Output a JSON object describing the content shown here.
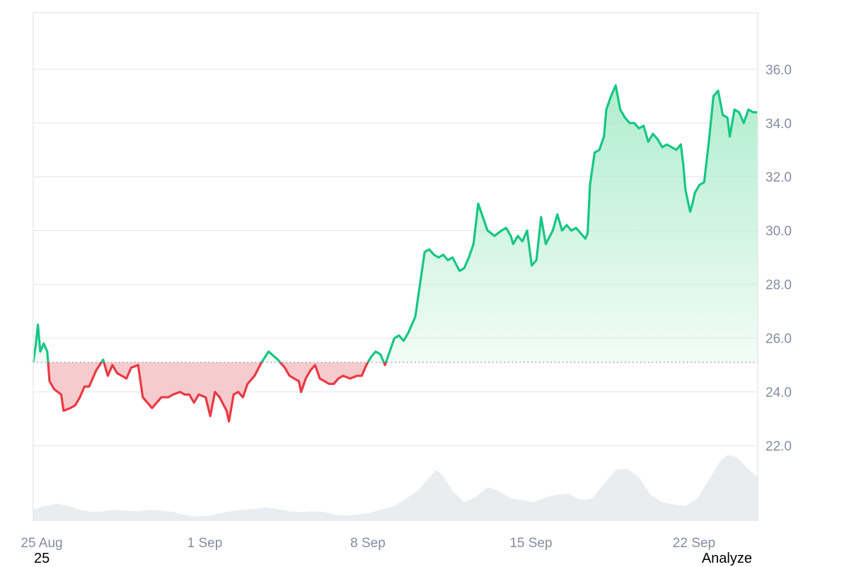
{
  "colors": {
    "up": "#16c784",
    "down": "#ea3943",
    "up_fill_top": "#a8ebc9",
    "down_fill": "#f5c2c5",
    "grid": "#e6e8ec",
    "axis_text": "#858ca2",
    "volume": "#eaedf0"
  },
  "chart_data": {
    "type": "area",
    "baseline": 25.1,
    "ylim": [
      19.2,
      38.1
    ],
    "y_ticks": [
      "36.0",
      "34.0",
      "32.0",
      "30.0",
      "28.0",
      "26.0",
      "24.0",
      "22.0"
    ],
    "x_ticks": [
      {
        "label": "25 Aug",
        "day": 0
      },
      {
        "label": "1 Sep",
        "day": 7
      },
      {
        "label": "8 Sep",
        "day": 14
      },
      {
        "label": "15 Sep",
        "day": 21
      },
      {
        "label": "22 Sep",
        "day": 28
      }
    ],
    "x_range_days": [
      0,
      31.1
    ],
    "series": [
      {
        "points": [
          [
            0.0,
            25.1
          ],
          [
            0.1,
            25.7
          ],
          [
            0.2,
            26.5
          ],
          [
            0.3,
            25.5
          ],
          [
            0.45,
            25.8
          ],
          [
            0.6,
            25.5
          ],
          [
            0.7,
            24.4
          ],
          [
            0.9,
            24.1
          ],
          [
            1.2,
            23.9
          ],
          [
            1.3,
            23.3
          ],
          [
            1.6,
            23.4
          ],
          [
            1.8,
            23.5
          ],
          [
            2.0,
            23.8
          ],
          [
            2.2,
            24.2
          ],
          [
            2.4,
            24.2
          ],
          [
            2.7,
            24.8
          ],
          [
            3.0,
            25.2
          ],
          [
            3.2,
            24.6
          ],
          [
            3.4,
            25.0
          ],
          [
            3.6,
            24.7
          ],
          [
            3.8,
            24.6
          ],
          [
            4.0,
            24.5
          ],
          [
            4.2,
            24.9
          ],
          [
            4.5,
            25.0
          ],
          [
            4.7,
            23.8
          ],
          [
            4.9,
            23.6
          ],
          [
            5.1,
            23.4
          ],
          [
            5.3,
            23.6
          ],
          [
            5.5,
            23.8
          ],
          [
            5.8,
            23.8
          ],
          [
            6.0,
            23.9
          ],
          [
            6.3,
            24.0
          ],
          [
            6.5,
            23.9
          ],
          [
            6.7,
            23.9
          ],
          [
            6.9,
            23.6
          ],
          [
            7.1,
            23.9
          ],
          [
            7.4,
            23.8
          ],
          [
            7.6,
            23.1
          ],
          [
            7.8,
            24.0
          ],
          [
            8.0,
            23.8
          ],
          [
            8.3,
            23.3
          ],
          [
            8.4,
            22.9
          ],
          [
            8.6,
            23.9
          ],
          [
            8.8,
            24.0
          ],
          [
            9.0,
            23.8
          ],
          [
            9.2,
            24.3
          ],
          [
            9.5,
            24.6
          ],
          [
            9.8,
            25.1
          ],
          [
            10.1,
            25.5
          ],
          [
            10.5,
            25.2
          ],
          [
            10.8,
            24.9
          ],
          [
            11.0,
            24.6
          ],
          [
            11.2,
            24.5
          ],
          [
            11.4,
            24.4
          ],
          [
            11.5,
            24.0
          ],
          [
            11.7,
            24.5
          ],
          [
            11.9,
            24.8
          ],
          [
            12.1,
            25.0
          ],
          [
            12.3,
            24.5
          ],
          [
            12.5,
            24.4
          ],
          [
            12.7,
            24.3
          ],
          [
            12.9,
            24.3
          ],
          [
            13.1,
            24.5
          ],
          [
            13.3,
            24.6
          ],
          [
            13.6,
            24.5
          ],
          [
            13.9,
            24.6
          ],
          [
            14.1,
            24.6
          ],
          [
            14.3,
            25.0
          ],
          [
            14.5,
            25.3
          ],
          [
            14.7,
            25.5
          ],
          [
            14.9,
            25.4
          ],
          [
            15.1,
            25.0
          ],
          [
            15.3,
            25.5
          ],
          [
            15.5,
            26.0
          ],
          [
            15.7,
            26.1
          ],
          [
            15.9,
            25.9
          ],
          [
            16.1,
            26.2
          ],
          [
            16.4,
            26.8
          ],
          [
            16.6,
            28.0
          ],
          [
            16.8,
            29.2
          ],
          [
            17.0,
            29.3
          ],
          [
            17.2,
            29.1
          ],
          [
            17.4,
            29.0
          ],
          [
            17.6,
            29.1
          ],
          [
            17.8,
            28.9
          ],
          [
            18.0,
            29.0
          ],
          [
            18.3,
            28.5
          ],
          [
            18.5,
            28.6
          ],
          [
            18.7,
            29.0
          ],
          [
            18.9,
            29.5
          ],
          [
            19.1,
            31.0
          ],
          [
            19.3,
            30.5
          ],
          [
            19.5,
            30.0
          ],
          [
            19.8,
            29.8
          ],
          [
            20.1,
            30.0
          ],
          [
            20.3,
            30.1
          ],
          [
            20.5,
            29.8
          ],
          [
            20.6,
            29.5
          ],
          [
            20.8,
            29.8
          ],
          [
            21.0,
            29.6
          ],
          [
            21.2,
            30.0
          ],
          [
            21.4,
            28.7
          ],
          [
            21.6,
            28.9
          ],
          [
            21.8,
            30.5
          ],
          [
            22.0,
            29.5
          ],
          [
            22.3,
            30.0
          ],
          [
            22.5,
            30.6
          ],
          [
            22.7,
            30.0
          ],
          [
            22.9,
            30.2
          ],
          [
            23.1,
            30.0
          ],
          [
            23.3,
            30.1
          ],
          [
            23.5,
            29.9
          ],
          [
            23.7,
            29.7
          ],
          [
            23.8,
            29.9
          ],
          [
            23.9,
            31.7
          ],
          [
            24.1,
            32.9
          ],
          [
            24.3,
            33.0
          ],
          [
            24.5,
            33.5
          ],
          [
            24.6,
            34.5
          ],
          [
            24.8,
            35.0
          ],
          [
            25.0,
            35.4
          ],
          [
            25.2,
            34.5
          ],
          [
            25.4,
            34.2
          ],
          [
            25.6,
            34.0
          ],
          [
            25.8,
            34.0
          ],
          [
            26.0,
            33.8
          ],
          [
            26.2,
            33.9
          ],
          [
            26.4,
            33.3
          ],
          [
            26.6,
            33.6
          ],
          [
            26.8,
            33.4
          ],
          [
            27.0,
            33.1
          ],
          [
            27.2,
            33.2
          ],
          [
            27.4,
            33.1
          ],
          [
            27.6,
            33.0
          ],
          [
            27.8,
            33.2
          ],
          [
            27.9,
            32.5
          ],
          [
            28.0,
            31.5
          ],
          [
            28.2,
            30.7
          ],
          [
            28.3,
            31.0
          ],
          [
            28.4,
            31.4
          ],
          [
            28.6,
            31.7
          ],
          [
            28.8,
            31.8
          ],
          [
            29.0,
            33.3
          ],
          [
            29.2,
            35.0
          ],
          [
            29.4,
            35.2
          ],
          [
            29.6,
            34.3
          ],
          [
            29.8,
            34.2
          ],
          [
            29.9,
            33.5
          ],
          [
            30.1,
            34.5
          ],
          [
            30.3,
            34.4
          ],
          [
            30.5,
            34.0
          ],
          [
            30.7,
            34.5
          ],
          [
            30.9,
            34.4
          ],
          [
            31.1,
            34.4
          ]
        ]
      }
    ],
    "volume": {
      "max": 1.0,
      "points": [
        [
          0.0,
          0.15
        ],
        [
          0.5,
          0.2
        ],
        [
          1.0,
          0.23
        ],
        [
          1.5,
          0.2
        ],
        [
          2.0,
          0.15
        ],
        [
          2.5,
          0.12
        ],
        [
          3.0,
          0.13
        ],
        [
          3.5,
          0.15
        ],
        [
          4.0,
          0.14
        ],
        [
          4.5,
          0.13
        ],
        [
          5.0,
          0.15
        ],
        [
          5.5,
          0.14
        ],
        [
          6.0,
          0.12
        ],
        [
          6.5,
          0.08
        ],
        [
          7.0,
          0.06
        ],
        [
          7.5,
          0.07
        ],
        [
          8.0,
          0.1
        ],
        [
          8.5,
          0.13
        ],
        [
          9.0,
          0.15
        ],
        [
          9.5,
          0.16
        ],
        [
          10.0,
          0.18
        ],
        [
          10.5,
          0.16
        ],
        [
          11.0,
          0.13
        ],
        [
          11.5,
          0.12
        ],
        [
          12.0,
          0.13
        ],
        [
          12.5,
          0.12
        ],
        [
          13.0,
          0.08
        ],
        [
          13.5,
          0.07
        ],
        [
          14.0,
          0.09
        ],
        [
          14.5,
          0.11
        ],
        [
          15.0,
          0.16
        ],
        [
          15.5,
          0.2
        ],
        [
          16.0,
          0.3
        ],
        [
          16.5,
          0.4
        ],
        [
          17.0,
          0.58
        ],
        [
          17.3,
          0.68
        ],
        [
          17.6,
          0.6
        ],
        [
          18.0,
          0.4
        ],
        [
          18.5,
          0.25
        ],
        [
          19.0,
          0.32
        ],
        [
          19.5,
          0.45
        ],
        [
          20.0,
          0.4
        ],
        [
          20.5,
          0.3
        ],
        [
          21.0,
          0.28
        ],
        [
          21.5,
          0.25
        ],
        [
          22.0,
          0.32
        ],
        [
          22.5,
          0.35
        ],
        [
          23.0,
          0.36
        ],
        [
          23.5,
          0.28
        ],
        [
          24.0,
          0.3
        ],
        [
          24.5,
          0.5
        ],
        [
          25.0,
          0.68
        ],
        [
          25.5,
          0.7
        ],
        [
          26.0,
          0.58
        ],
        [
          26.5,
          0.35
        ],
        [
          27.0,
          0.25
        ],
        [
          27.5,
          0.22
        ],
        [
          28.0,
          0.2
        ],
        [
          28.5,
          0.3
        ],
        [
          29.0,
          0.55
        ],
        [
          29.5,
          0.8
        ],
        [
          29.8,
          0.88
        ],
        [
          30.2,
          0.85
        ],
        [
          30.6,
          0.72
        ],
        [
          31.1,
          0.58
        ]
      ]
    }
  },
  "footer": {
    "left_text": "25",
    "right_text": "Analyze"
  }
}
